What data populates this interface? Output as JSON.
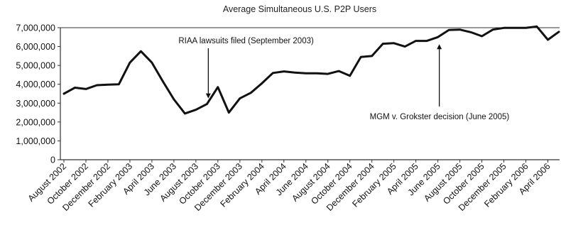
{
  "chart_data": {
    "type": "line",
    "title": "Average Simultaneous U.S. P2P Users",
    "xlabel": "",
    "ylabel": "",
    "ylim": [
      0,
      7000000
    ],
    "yticks": [
      0,
      1000000,
      2000000,
      3000000,
      4000000,
      5000000,
      6000000,
      7000000
    ],
    "ytick_labels": [
      "0",
      "1,000,000",
      "2,000,000",
      "3,000,000",
      "4,000,000",
      "5,000,000",
      "6,000,000",
      "7,000,000"
    ],
    "grid": false,
    "series": [
      {
        "values": [
          3500000,
          3820000,
          3750000,
          3950000,
          3980000,
          4000000,
          5150000,
          5750000,
          5150000,
          4150000,
          3200000,
          2450000,
          2650000,
          2950000,
          3850000,
          2500000,
          3250000,
          3550000,
          4050000,
          4600000,
          4680000,
          4620000,
          4580000,
          4580000,
          4550000,
          4700000,
          4450000,
          5450000,
          5500000,
          6150000,
          6180000,
          6000000,
          6300000,
          6300000,
          6500000,
          6880000,
          6900000,
          6760000,
          6550000,
          6900000,
          6990000,
          6990000,
          6990000,
          7060000,
          6360000,
          6780000
        ]
      }
    ],
    "x_labels": [
      {
        "index": 0,
        "label": "August 2002"
      },
      {
        "index": 2,
        "label": "October 2002"
      },
      {
        "index": 4,
        "label": "December 2002"
      },
      {
        "index": 6,
        "label": "February 2003"
      },
      {
        "index": 8,
        "label": "April 2003"
      },
      {
        "index": 10,
        "label": "June 2003"
      },
      {
        "index": 12,
        "label": "August 2003"
      },
      {
        "index": 14,
        "label": "October 2003"
      },
      {
        "index": 16,
        "label": "December 2003"
      },
      {
        "index": 18,
        "label": "February 2004"
      },
      {
        "index": 20,
        "label": "April 2004"
      },
      {
        "index": 22,
        "label": "June 2004"
      },
      {
        "index": 24,
        "label": "August 2004"
      },
      {
        "index": 26,
        "label": "October 2004"
      },
      {
        "index": 28,
        "label": "December 2004"
      },
      {
        "index": 30,
        "label": "February 2005"
      },
      {
        "index": 32,
        "label": "April 2005"
      },
      {
        "index": 34,
        "label": "June 2005"
      },
      {
        "index": 36,
        "label": "August 2005"
      },
      {
        "index": 38,
        "label": "October 2005"
      },
      {
        "index": 40,
        "label": "December 2005"
      },
      {
        "index": 42,
        "label": "February 2006"
      },
      {
        "index": 44,
        "label": "April 2006"
      }
    ],
    "annotations": [
      {
        "text": "RIAA lawsuits filed (September 2003)",
        "target_index": 13
      },
      {
        "text": "MGM v. Grokster decision (June 2005)",
        "target_index": 34
      }
    ],
    "colors": {
      "line": "#111111",
      "axis": "#333333",
      "text": "#111111"
    }
  }
}
